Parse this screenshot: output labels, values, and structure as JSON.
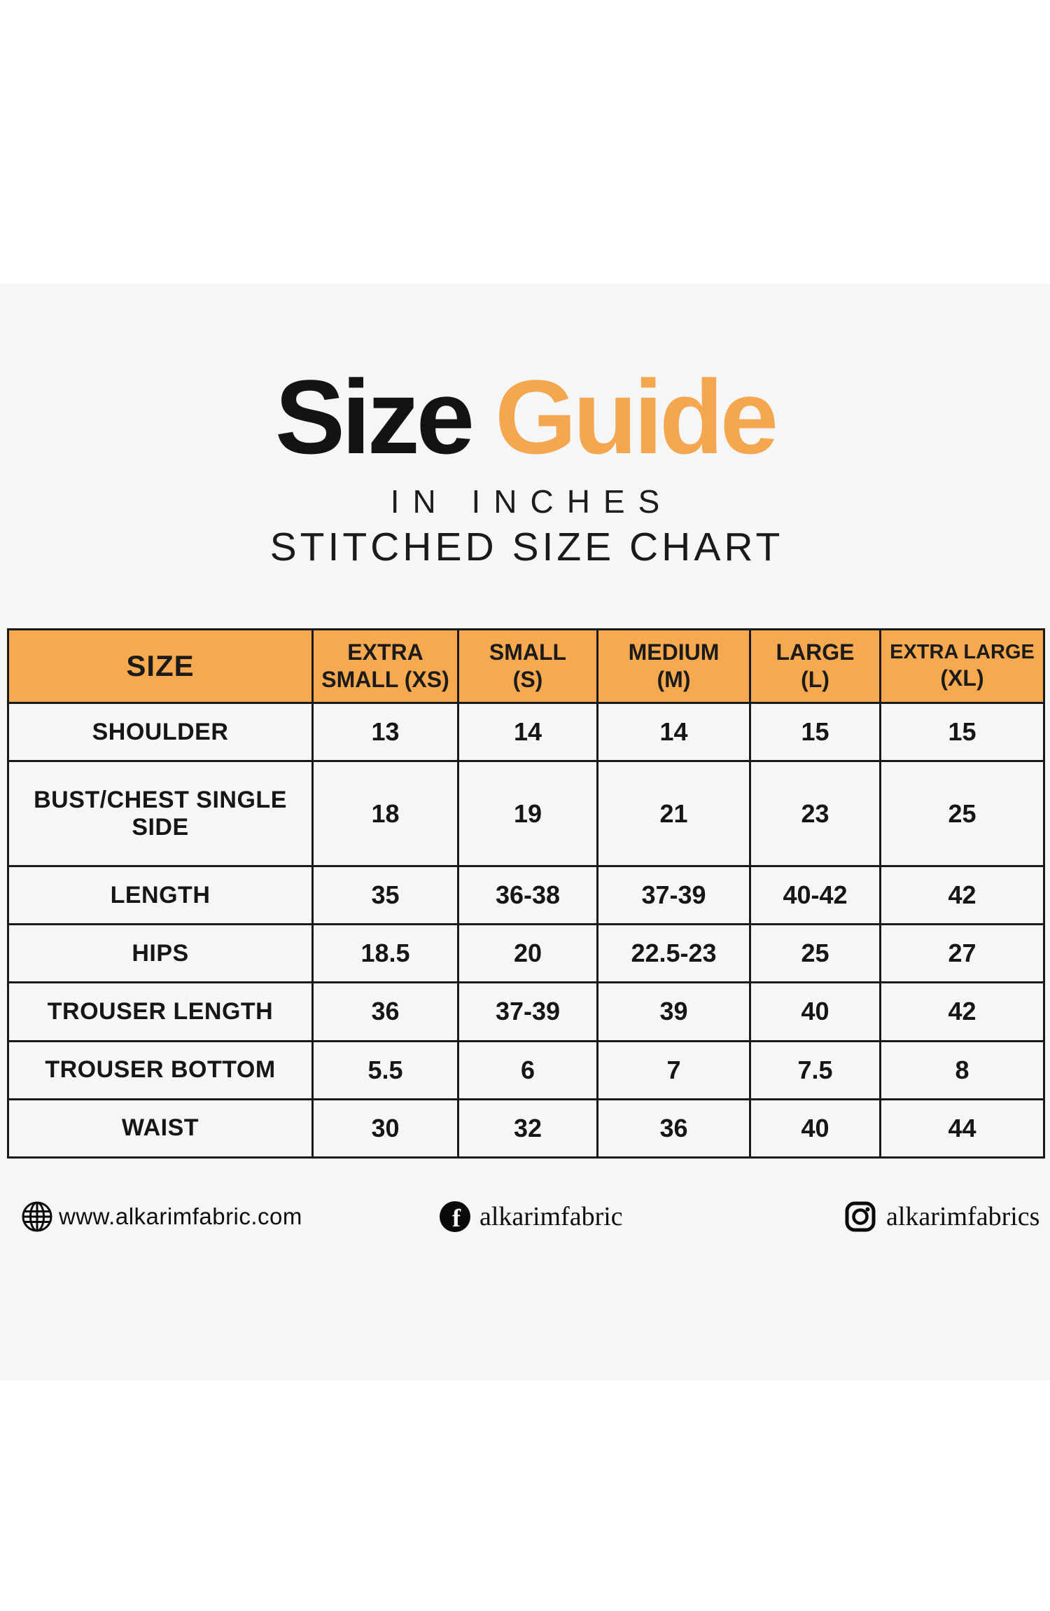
{
  "header": {
    "title_black": "Size",
    "title_orange": "Guide",
    "subtitle_line1": "IN INCHES",
    "subtitle_line2": "STITCHED SIZE CHART"
  },
  "colors": {
    "accent_orange": "#F5A750",
    "header_orange": "#F6A94F",
    "panel_background": "#F5F6F8",
    "border_black": "#1A1A1A"
  },
  "chart_data": {
    "type": "table",
    "title": "Size Guide",
    "subtitle": "IN INCHES",
    "caption": "STITCHED SIZE CHART",
    "units": "inches",
    "columns": [
      "SIZE",
      "EXTRA SMALL (XS)",
      "SMALL (S)",
      "MEDIUM (M)",
      "LARGE (L)",
      "EXTRA LARGE (XL)"
    ],
    "rows": [
      {
        "label": "SHOULDER",
        "values": [
          "13",
          "14",
          "14",
          "15",
          "15"
        ]
      },
      {
        "label": "BUST/CHEST SINGLE SIDE",
        "values": [
          "18",
          "19",
          "21",
          "23",
          "25"
        ]
      },
      {
        "label": "LENGTH",
        "values": [
          "35",
          "36-38",
          "37-39",
          "40-42",
          "42"
        ]
      },
      {
        "label": "HIPS",
        "values": [
          "18.5",
          "20",
          "22.5-23",
          "25",
          "27"
        ]
      },
      {
        "label": "TROUSER LENGTH",
        "values": [
          "36",
          "37-39",
          "39",
          "40",
          "42"
        ]
      },
      {
        "label": "TROUSER BOTTOM",
        "values": [
          "5.5",
          "6",
          "7",
          "7.5",
          "8"
        ]
      },
      {
        "label": "WAIST",
        "values": [
          "30",
          "32",
          "36",
          "40",
          "44"
        ]
      }
    ]
  },
  "table_header_display": [
    {
      "line1": "SIZE",
      "line2": ""
    },
    {
      "line1": "EXTRA",
      "line2": "SMALL (XS)"
    },
    {
      "line1": "SMALL",
      "line2": "(S)"
    },
    {
      "line1": "MEDIUM",
      "line2": "(M)"
    },
    {
      "line1": "LARGE",
      "line2": "(L)"
    },
    {
      "line1": "EXTRA LARGE",
      "line2": "(XL)",
      "compact": true
    }
  ],
  "footer": {
    "website": "www.alkarimfabric.com",
    "facebook_handle": "alkarimfabric",
    "instagram_handle": "alkarimfabrics"
  }
}
